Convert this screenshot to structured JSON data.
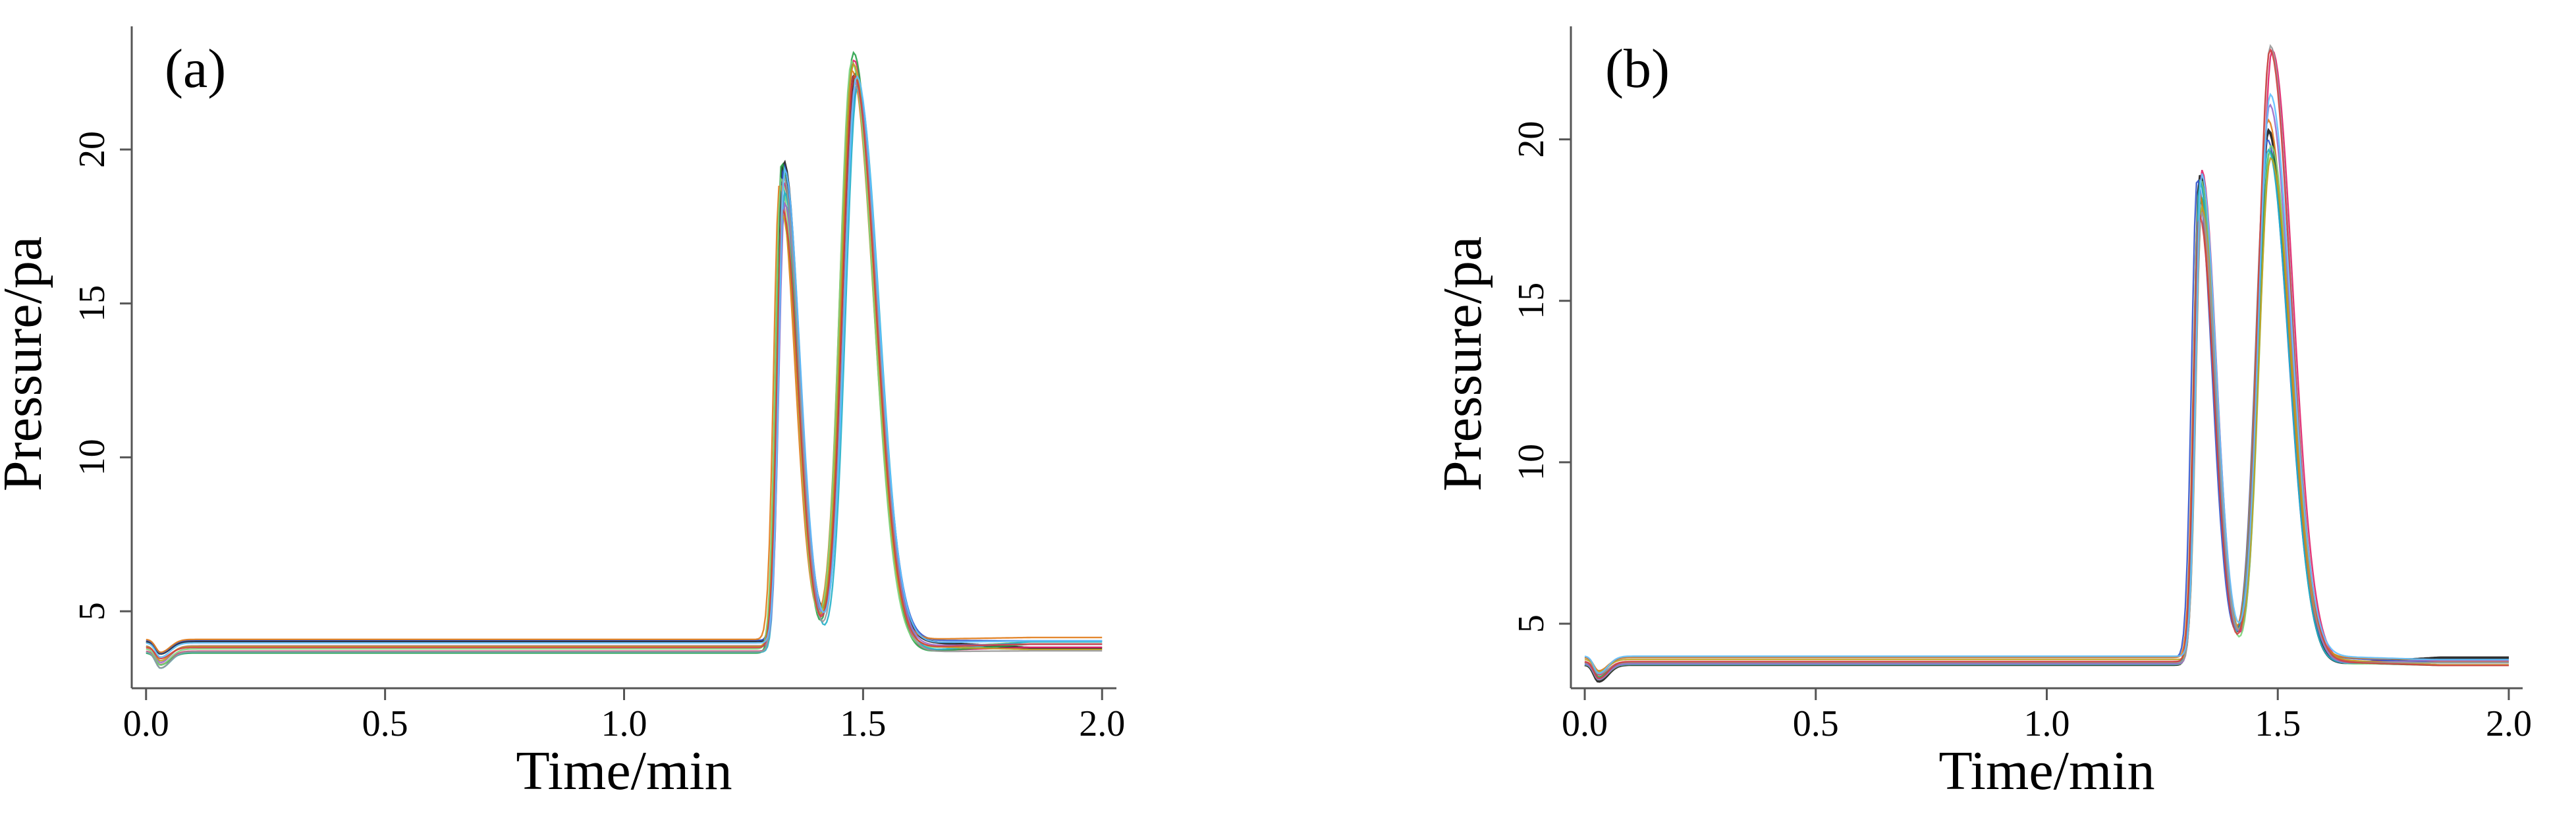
{
  "colors": {
    "axis": "#555555",
    "series": [
      "#1a1a1a",
      "#e0216a",
      "#3355cc",
      "#2aa34a",
      "#e07b1a",
      "#7bd37b",
      "#22b0c8",
      "#9a6acb",
      "#c0a020",
      "#999999",
      "#d04040",
      "#60c0ff"
    ]
  },
  "chart_data": [
    {
      "panel_label": "(a)",
      "type": "line",
      "title": "",
      "xlabel": "Time/min",
      "ylabel": "Pressure/pa",
      "xlim": [
        -0.03,
        2.03
      ],
      "ylim": [
        2.5,
        24
      ],
      "x_ticks": [
        0.0,
        0.5,
        1.0,
        1.5,
        2.0
      ],
      "x_tick_labels": [
        "0.0",
        "0.5",
        "1.0",
        "1.5",
        "2.0"
      ],
      "y_ticks": [
        5,
        10,
        15,
        20
      ],
      "y_tick_labels": [
        "5",
        "10",
        "15",
        "20"
      ],
      "grid": false,
      "series_count": 12,
      "baseline_range": [
        3.6,
        4.2
      ],
      "peaks": [
        {
          "x": 1.33,
          "y_range": [
            17.8,
            20.2
          ]
        },
        {
          "x": 1.48,
          "y_range": [
            22.0,
            23.3
          ]
        }
      ],
      "valley": {
        "x": 1.43,
        "y_range": [
          4.3,
          5.2
        ]
      },
      "end_level_range": [
        3.7,
        4.2
      ]
    },
    {
      "panel_label": "(b)",
      "type": "line",
      "title": "",
      "xlabel": "Time/min",
      "ylabel": "Pressure/pa",
      "xlim": [
        -0.03,
        2.03
      ],
      "ylim": [
        3.0,
        23.5
      ],
      "x_ticks": [
        0.0,
        0.5,
        1.0,
        1.5,
        2.0
      ],
      "x_tick_labels": [
        "0.0",
        "0.5",
        "1.0",
        "1.5",
        "2.0"
      ],
      "y_ticks": [
        5,
        10,
        15,
        20
      ],
      "y_tick_labels": [
        "5",
        "10",
        "15",
        "20"
      ],
      "grid": false,
      "series_count": 12,
      "baseline_range": [
        3.7,
        4.0
      ],
      "peaks": [
        {
          "x": 1.33,
          "y_range": [
            17.5,
            19.3
          ]
        },
        {
          "x": 1.48,
          "y_range": [
            19.0,
            22.9
          ]
        }
      ],
      "valley": {
        "x": 1.43,
        "y_range": [
          4.2,
          5.0
        ]
      },
      "end_level_range": [
        3.7,
        4.0
      ]
    }
  ]
}
